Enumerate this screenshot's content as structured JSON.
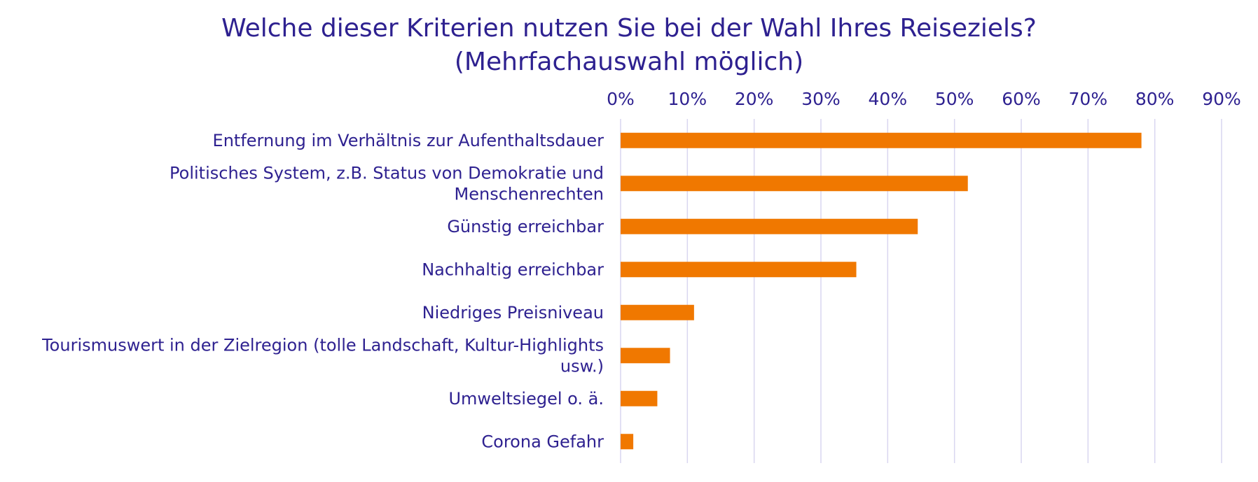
{
  "chart_data": {
    "type": "bar",
    "orientation": "horizontal",
    "title_lines": [
      "Welche dieser Kriterien nutzen Sie bei der Wahl Ihres Reiseziels?",
      "(Mehrfachauswahl möglich)"
    ],
    "categories": [
      [
        "Entfernung im Verhältnis zur Aufenthaltsdauer"
      ],
      [
        "Politisches System, z.B. Status von Demokratie und",
        "Menschenrechten"
      ],
      [
        "Günstig erreichbar"
      ],
      [
        "Nachhaltig erreichbar"
      ],
      [
        "Niedriges Preisniveau"
      ],
      [
        "Tourismuswert in der Zielregion (tolle Landschaft, Kultur-Highlights",
        "usw.)"
      ],
      [
        "Umweltsiegel o. ä."
      ],
      [
        "Corona Gefahr"
      ]
    ],
    "values": [
      78,
      52,
      44.5,
      35.3,
      11,
      7.4,
      5.5,
      1.9
    ],
    "xlim": [
      0,
      90
    ],
    "xticks": [
      0,
      10,
      20,
      30,
      40,
      50,
      60,
      70,
      80,
      90
    ],
    "tick_suffix": "%",
    "x_axis_position": "top",
    "grid": true,
    "legend": "none",
    "colors": {
      "bar": "#F07800",
      "text": "#2E2190",
      "grid": "#D9D6F0"
    }
  }
}
